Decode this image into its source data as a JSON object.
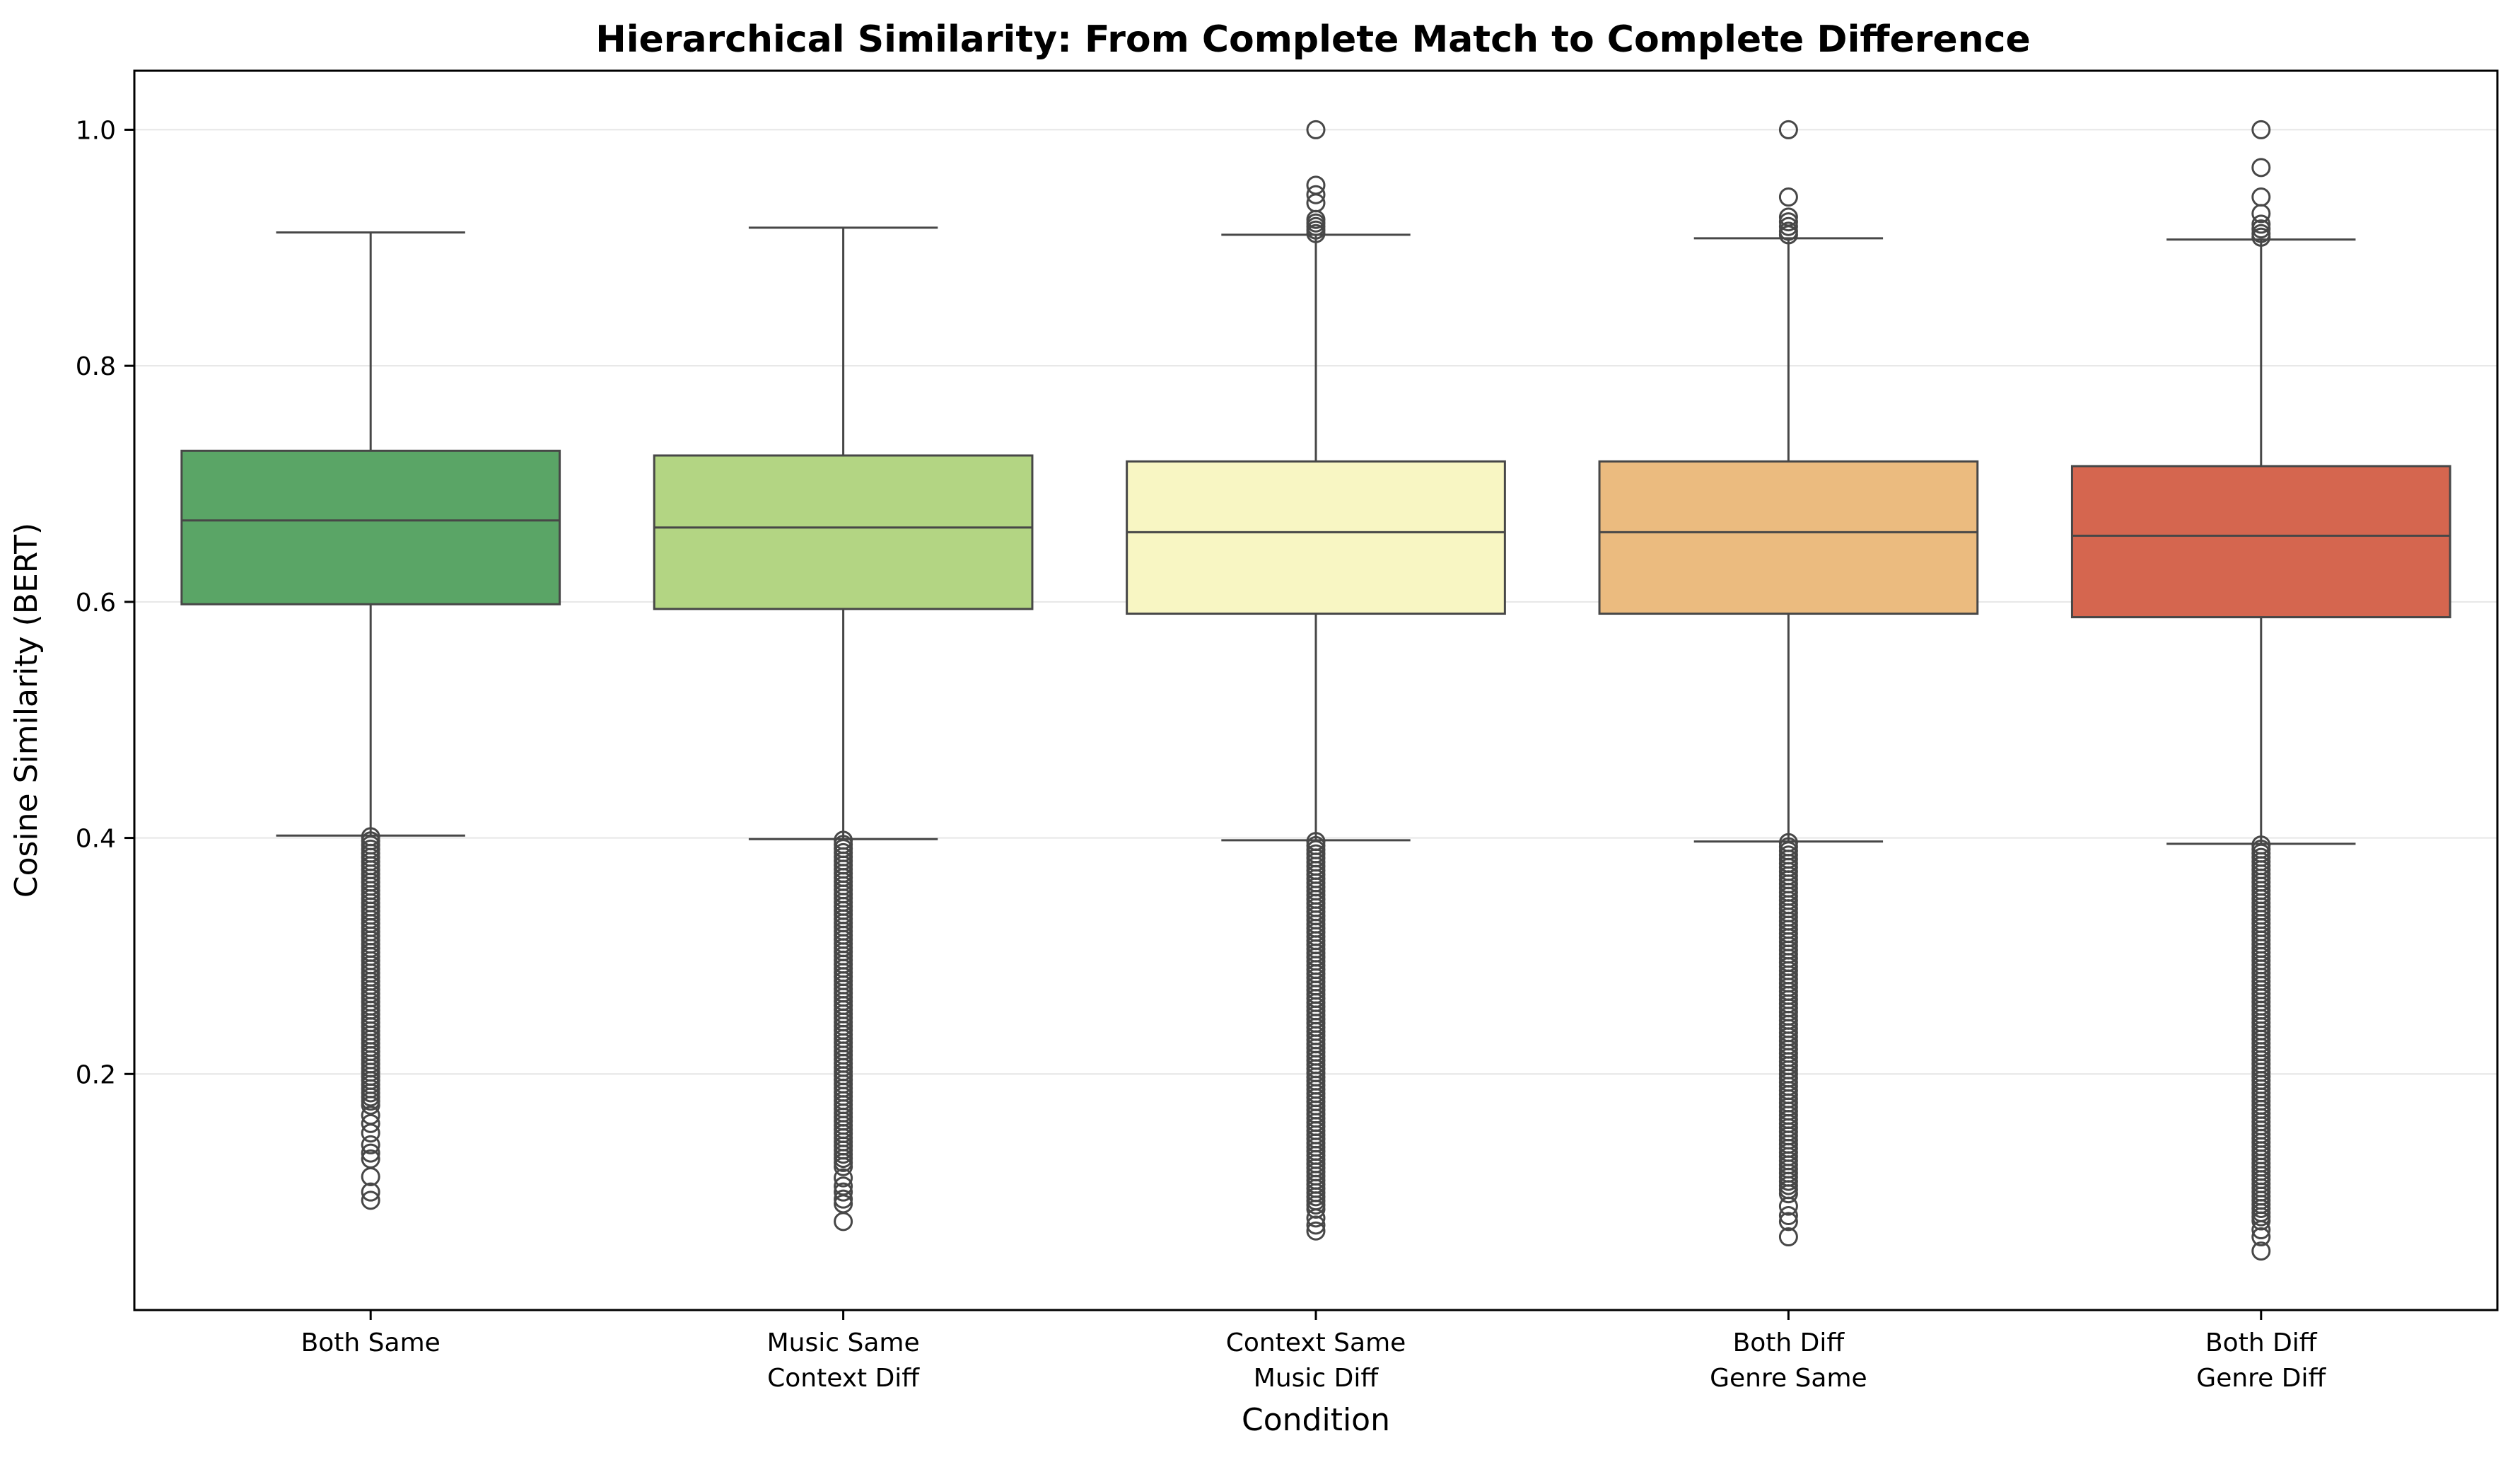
{
  "chart_data": {
    "type": "box",
    "title": "Hierarchical Similarity: From Complete Match to Complete Difference",
    "xlabel": "Condition",
    "ylabel": "Cosine Similarity (BERT)",
    "ylim": [
      0.0,
      1.05
    ],
    "yticks": [
      0.2,
      0.4,
      0.6,
      0.8,
      1.0
    ],
    "ytick_labels": [
      "0.2",
      "0.4",
      "0.6",
      "0.8",
      "1.0"
    ],
    "grid": "horizontal",
    "categories": [
      [
        "Both Same"
      ],
      [
        "Music Same",
        "Context Diff"
      ],
      [
        "Context Same",
        "Music Diff"
      ],
      [
        "Both Diff",
        "Genre Same"
      ],
      [
        "Both Diff",
        "Genre Diff"
      ]
    ],
    "boxes": [
      {
        "q1": 0.598,
        "median": 0.669,
        "q3": 0.728,
        "whisker_low": 0.402,
        "whisker_high": 0.913,
        "color": "#5aa566",
        "outliers_high": [],
        "outliers_low_range": [
          0.172,
          0.401
        ],
        "outliers_low": [
          0.093,
          0.1,
          0.113,
          0.128,
          0.133,
          0.14,
          0.15,
          0.158,
          0.165
        ]
      },
      {
        "q1": 0.594,
        "median": 0.663,
        "q3": 0.724,
        "whisker_low": 0.399,
        "whisker_high": 0.917,
        "color": "#b3d583",
        "outliers_high": [],
        "outliers_low_range": [
          0.118,
          0.398
        ],
        "outliers_low": [
          0.075,
          0.09,
          0.094,
          0.1,
          0.105,
          0.112
        ]
      },
      {
        "q1": 0.59,
        "median": 0.659,
        "q3": 0.719,
        "whisker_low": 0.398,
        "whisker_high": 0.911,
        "color": "#f8f6c3",
        "outliers_high": [
          0.912,
          0.915,
          0.918,
          0.921,
          0.924,
          0.938,
          0.945,
          0.953,
          1.0
        ],
        "outliers_low_range": [
          0.085,
          0.397
        ],
        "outliers_low": [
          0.067,
          0.072,
          0.078
        ]
      },
      {
        "q1": 0.59,
        "median": 0.659,
        "q3": 0.719,
        "whisker_low": 0.397,
        "whisker_high": 0.908,
        "color": "#ebbb7f",
        "outliers_high": [
          0.911,
          0.914,
          0.918,
          0.922,
          0.926,
          0.943,
          1.0
        ],
        "outliers_low_range": [
          0.095,
          0.396
        ],
        "outliers_low": [
          0.062,
          0.075,
          0.08,
          0.088
        ]
      },
      {
        "q1": 0.587,
        "median": 0.656,
        "q3": 0.715,
        "whisker_low": 0.395,
        "whisker_high": 0.907,
        "color": "#d5664f",
        "outliers_high": [
          0.909,
          0.912,
          0.916,
          0.92,
          0.929,
          0.943,
          0.968,
          1.0
        ],
        "outliers_low_range": [
          0.075,
          0.394
        ],
        "outliers_low": [
          0.05,
          0.062,
          0.068
        ]
      }
    ]
  }
}
